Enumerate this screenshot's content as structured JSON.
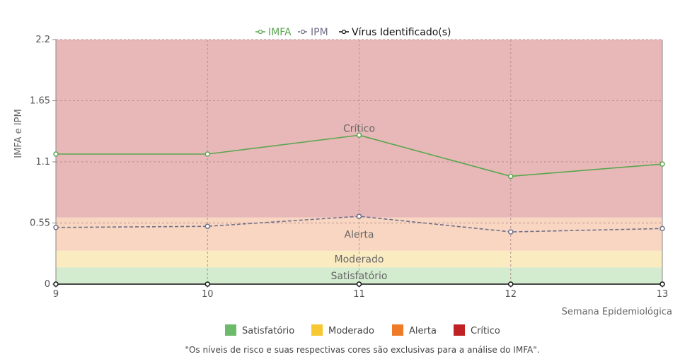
{
  "chart_data": {
    "type": "line",
    "x": [
      9,
      10,
      11,
      12,
      13
    ],
    "xlabel": "Semana Epidemiológica",
    "ylabel": "IMFA e IPM",
    "ylim": [
      0,
      2.2
    ],
    "yticks": [
      "0",
      "0.55",
      "1.1",
      "1.65",
      "2.2"
    ],
    "xticks": [
      "9",
      "10",
      "11",
      "12",
      "13"
    ],
    "grid": true,
    "legend_position": "top-center",
    "series": [
      {
        "name": "IMFA",
        "color": "#5aa64f",
        "dash": "solid",
        "values": [
          1.17,
          1.17,
          1.34,
          0.97,
          1.08
        ]
      },
      {
        "name": "IPM",
        "color": "#6f6f8a",
        "dash": "dashed",
        "values": [
          0.51,
          0.52,
          0.61,
          0.47,
          0.5
        ]
      },
      {
        "name": "Vírus Identificado(s)",
        "color": "#111111",
        "dash": "solid",
        "values": [
          0,
          0,
          0,
          0,
          0
        ]
      }
    ],
    "zones": [
      {
        "label": "Satisfatório",
        "from": 0,
        "to": 0.15,
        "color": "#d3ebcf"
      },
      {
        "label": "Moderado",
        "from": 0.15,
        "to": 0.3,
        "color": "#fbebc1"
      },
      {
        "label": "Alerta",
        "from": 0.3,
        "to": 0.6,
        "color": "#f8d6c1"
      },
      {
        "label": "Crítico",
        "from": 0.6,
        "to": 2.2,
        "color": "#e8b8b8"
      }
    ],
    "risk_legend": [
      {
        "label": "Satisfatório",
        "color": "#6cbb6a"
      },
      {
        "label": "Moderado",
        "color": "#f7c831"
      },
      {
        "label": "Alerta",
        "color": "#f07b26"
      },
      {
        "label": "Crítico",
        "color": "#bf2125"
      }
    ],
    "note": "\"Os níveis de risco e suas respectivas cores são exclusivas para a análise do IMFA\"."
  }
}
